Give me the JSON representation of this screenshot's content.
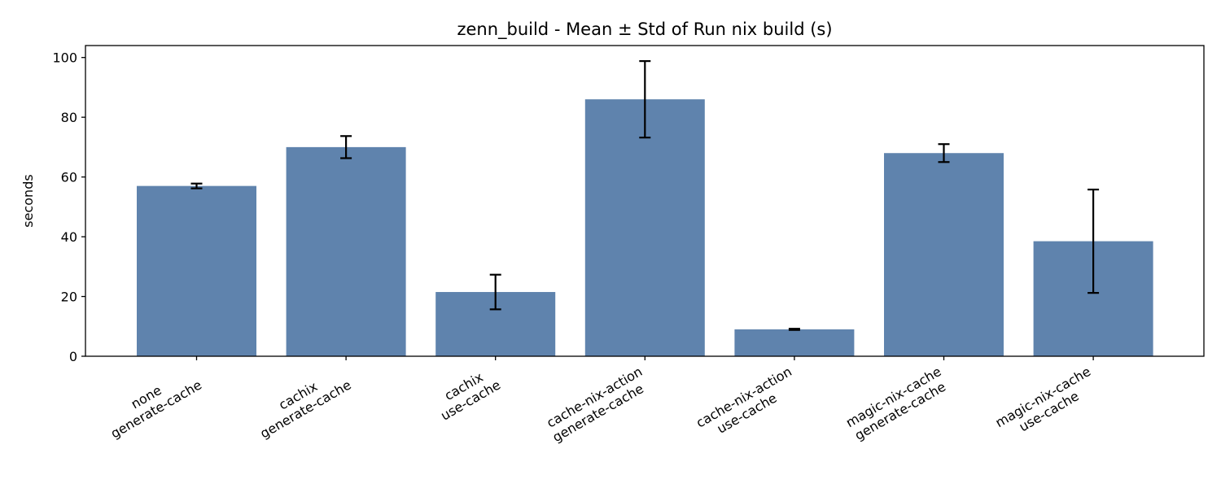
{
  "chart_data": {
    "type": "bar",
    "title": "zenn_build - Mean ± Std of Run nix build (s)",
    "xlabel": "",
    "ylabel": "seconds",
    "ylim": [
      0,
      104
    ],
    "yticks": [
      0,
      20,
      40,
      60,
      80,
      100
    ],
    "grid": false,
    "categories": [
      [
        "none",
        "generate-cache"
      ],
      [
        "cachix",
        "generate-cache"
      ],
      [
        "cachix",
        "use-cache"
      ],
      [
        "cache-nix-action",
        "generate-cache"
      ],
      [
        "cache-nix-action",
        "use-cache"
      ],
      [
        "magic-nix-cache",
        "generate-cache"
      ],
      [
        "magic-nix-cache",
        "use-cache"
      ]
    ],
    "values": [
      57.0,
      70.0,
      21.5,
      86.0,
      9.0,
      68.0,
      38.5
    ],
    "std": [
      0.8,
      3.7,
      5.8,
      12.8,
      0.2,
      3.0,
      17.3
    ],
    "bar_color": "#5f83ad",
    "error_color": "#000000"
  }
}
